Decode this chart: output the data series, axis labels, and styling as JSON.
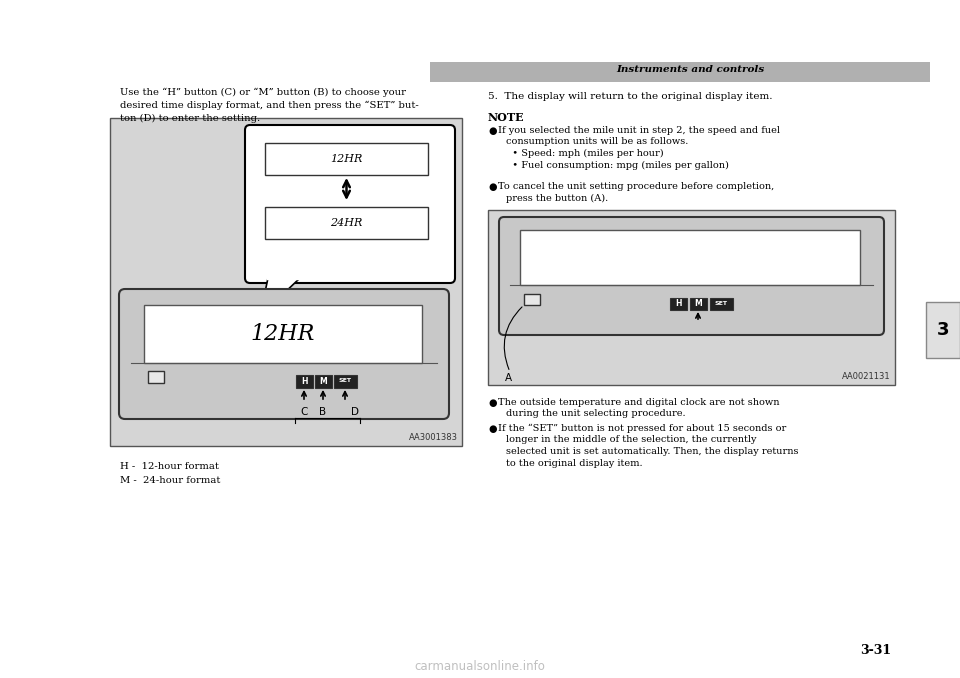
{
  "bg_color": "#ffffff",
  "header_bar_color": "#b0b0b0",
  "header_text": "Instruments and controls",
  "header_text_color": "#000000",
  "chapter_tab_color": "#e0e0e0",
  "chapter_tab_text": "3",
  "left_intro_text": "Use the “H” button (C) or “M” button (B) to choose your\ndesired time display format, and then press the “SET” but-\nton (D) to enter the setting.",
  "step5_text": "5.  The display will return to the original display item.",
  "note_title": "NOTE",
  "note_b1a": "If you selected the mile unit in step 2, the speed and fuel",
  "note_b1b": "consumption units will be as follows.",
  "note_b1c": "  • Speed: mph (miles per hour)",
  "note_b1d": "  • Fuel consumption: mpg (miles per gallon)",
  "note_b2a": "To cancel the unit setting procedure before completion,",
  "note_b2b": "press the button (A).",
  "note_b3a": "The outside temperature and digital clock are not shown",
  "note_b3b": "during the unit selecting procedure.",
  "note_b4a": "If the “SET” button is not pressed for about 15 seconds or",
  "note_b4b": "longer in the middle of the selection, the currently",
  "note_b4c": "selected unit is set automatically. Then, the display returns",
  "note_b4d": "to the original display item.",
  "diag1_bg": "#d8d8d8",
  "diag2_bg": "#d8d8d8",
  "display_12hr": "12HR",
  "display_24hr": "24HR",
  "display_main": "12HR",
  "diag1_code": "AA3001383",
  "diag2_code": "AA0021131",
  "label_H": "H -  12-hour format",
  "label_M": "M -  24-hour format",
  "page_num": "3-31",
  "watermark": "carmanualsonline.info"
}
